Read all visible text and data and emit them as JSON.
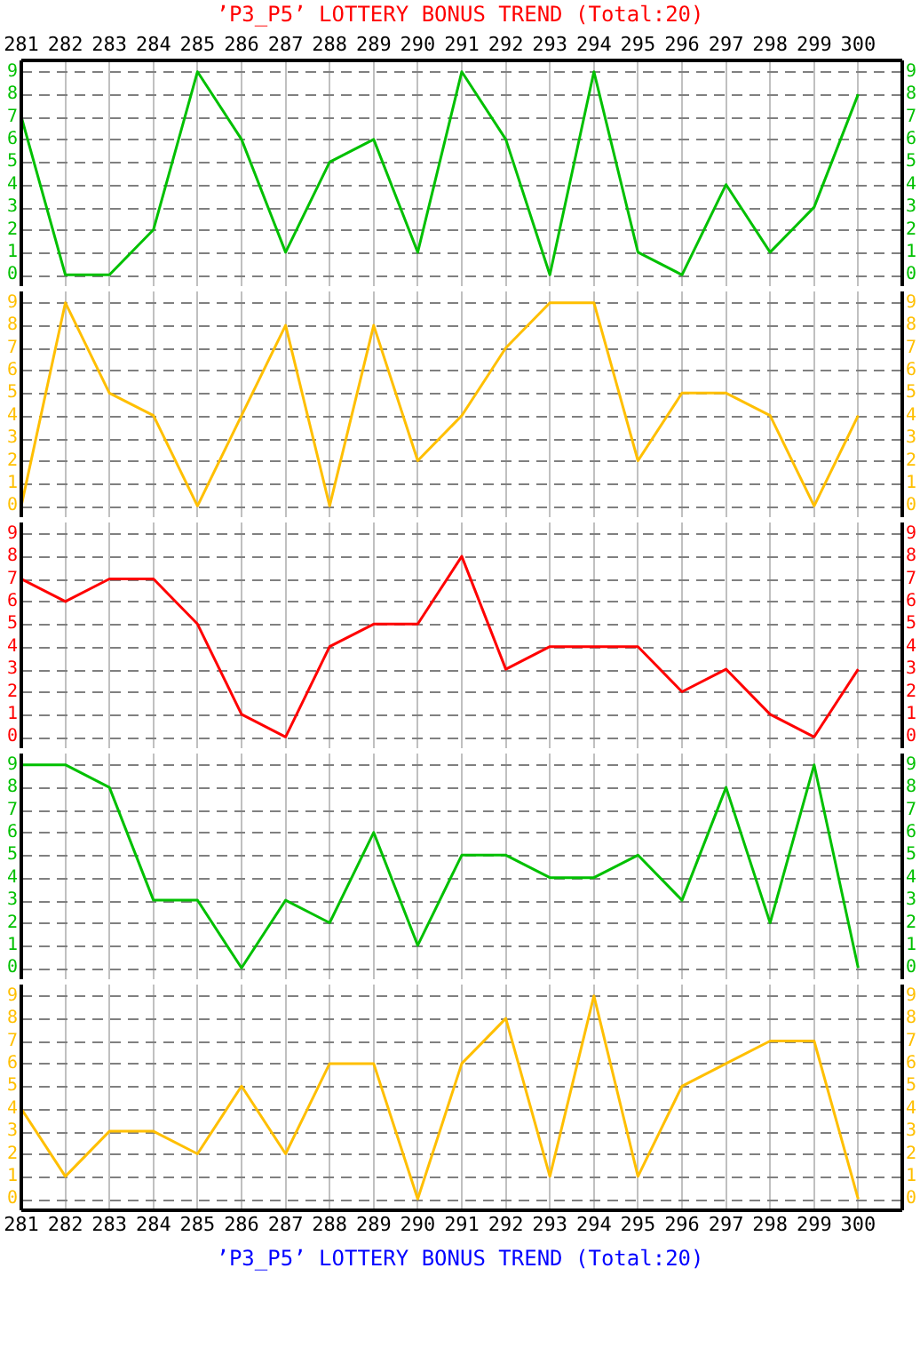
{
  "chart_data": [
    {
      "type": "line",
      "title": "’P3_P5’ LOTTERY BONUS TREND (Total:20)",
      "x": [
        281,
        282,
        283,
        284,
        285,
        286,
        287,
        288,
        289,
        290,
        291,
        292,
        293,
        294,
        295,
        296,
        297,
        298,
        299,
        300
      ],
      "xlim": [
        281,
        301
      ],
      "x2lim": [
        281,
        301
      ],
      "x2ticks": [
        281,
        282,
        283,
        284,
        285,
        286,
        287,
        288,
        289,
        290,
        291,
        292,
        293,
        294,
        295,
        296,
        297,
        298,
        299,
        300
      ],
      "ylim": [
        -0.5,
        9.5
      ],
      "yticks": [
        0,
        1,
        2,
        3,
        4,
        5,
        6,
        7,
        8,
        9
      ],
      "y2lim": [
        -0.5,
        9.5
      ],
      "y2ticks": [
        0,
        1,
        2,
        3,
        4,
        5,
        6,
        7,
        8,
        9
      ],
      "grid": true,
      "tick_labels": "y",
      "line_style": "solid",
      "series": [
        {
          "color": "#00c000",
          "values": [
            7,
            0,
            0,
            2,
            9,
            6,
            1,
            5,
            6,
            1,
            9,
            6,
            0,
            9,
            1,
            0,
            4,
            1,
            3,
            8
          ]
        }
      ]
    },
    {
      "type": "line",
      "x": [
        281,
        282,
        283,
        284,
        285,
        286,
        287,
        288,
        289,
        290,
        291,
        292,
        293,
        294,
        295,
        296,
        297,
        298,
        299,
        300
      ],
      "xlim": [
        281,
        301
      ],
      "xticks": [
        {
          "value": 281,
          "label": null
        },
        {
          "value": 282,
          "label": null
        },
        {
          "value": 283,
          "label": null
        },
        {
          "value": 284,
          "label": null
        },
        {
          "value": 285,
          "label": null
        },
        {
          "value": 286,
          "label": null
        },
        {
          "value": 287,
          "label": null
        },
        {
          "value": 288,
          "label": null
        },
        {
          "value": 289,
          "label": null
        },
        {
          "value": 290,
          "label": null
        },
        {
          "value": 291,
          "label": null
        },
        {
          "value": 292,
          "label": null
        },
        {
          "value": 293,
          "label": null
        },
        {
          "value": 294,
          "label": null
        },
        {
          "value": 295,
          "label": null
        },
        {
          "value": 296,
          "label": null
        },
        {
          "value": 297,
          "label": null
        },
        {
          "value": 298,
          "label": null
        },
        {
          "value": 299,
          "label": null
        },
        {
          "value": 300,
          "label": null
        }
      ],
      "ylim": [
        -0.5,
        9.5
      ],
      "yticks": [
        0,
        1,
        2,
        3,
        4,
        5,
        6,
        7,
        8,
        9
      ],
      "y2lim": [
        -0.5,
        9.5
      ],
      "y2ticks": [
        0,
        1,
        2,
        3,
        4,
        5,
        6,
        7,
        8,
        9
      ],
      "grid": true,
      "tick_labels": "y",
      "line_style": "solid",
      "series": [
        {
          "color": "#ffbf00",
          "values": [
            0,
            9,
            5,
            4,
            0,
            4,
            8,
            0,
            8,
            2,
            4,
            7,
            9,
            9,
            2,
            5,
            5,
            4,
            0,
            4
          ]
        }
      ]
    },
    {
      "type": "line",
      "x": [
        281,
        282,
        283,
        284,
        285,
        286,
        287,
        288,
        289,
        290,
        291,
        292,
        293,
        294,
        295,
        296,
        297,
        298,
        299,
        300
      ],
      "xlim": [
        281,
        301
      ],
      "xticks": [
        {
          "value": 281,
          "label": null
        },
        {
          "value": 282,
          "label": null
        },
        {
          "value": 283,
          "label": null
        },
        {
          "value": 284,
          "label": null
        },
        {
          "value": 285,
          "label": null
        },
        {
          "value": 286,
          "label": null
        },
        {
          "value": 287,
          "label": null
        },
        {
          "value": 288,
          "label": null
        },
        {
          "value": 289,
          "label": null
        },
        {
          "value": 290,
          "label": null
        },
        {
          "value": 291,
          "label": null
        },
        {
          "value": 292,
          "label": null
        },
        {
          "value": 293,
          "label": null
        },
        {
          "value": 294,
          "label": null
        },
        {
          "value": 295,
          "label": null
        },
        {
          "value": 296,
          "label": null
        },
        {
          "value": 297,
          "label": null
        },
        {
          "value": 298,
          "label": null
        },
        {
          "value": 299,
          "label": null
        },
        {
          "value": 300,
          "label": null
        }
      ],
      "ylim": [
        -0.5,
        9.5
      ],
      "yticks": [
        0,
        1,
        2,
        3,
        4,
        5,
        6,
        7,
        8,
        9
      ],
      "y2lim": [
        -0.5,
        9.5
      ],
      "y2ticks": [
        0,
        1,
        2,
        3,
        4,
        5,
        6,
        7,
        8,
        9
      ],
      "grid": true,
      "tick_labels": "y",
      "line_style": "solid",
      "series": [
        {
          "color": "#ff0000",
          "values": [
            7,
            6,
            7,
            7,
            5,
            1,
            0,
            4,
            5,
            5,
            8,
            3,
            4,
            4,
            4,
            2,
            3,
            1,
            0,
            3
          ]
        }
      ]
    },
    {
      "type": "line",
      "x": [
        281,
        282,
        283,
        284,
        285,
        286,
        287,
        288,
        289,
        290,
        291,
        292,
        293,
        294,
        295,
        296,
        297,
        298,
        299,
        300
      ],
      "xlim": [
        281,
        301
      ],
      "xticks": [
        {
          "value": 281,
          "label": null
        },
        {
          "value": 282,
          "label": null
        },
        {
          "value": 283,
          "label": null
        },
        {
          "value": 284,
          "label": null
        },
        {
          "value": 285,
          "label": null
        },
        {
          "value": 286,
          "label": null
        },
        {
          "value": 287,
          "label": null
        },
        {
          "value": 288,
          "label": null
        },
        {
          "value": 289,
          "label": null
        },
        {
          "value": 290,
          "label": null
        },
        {
          "value": 291,
          "label": null
        },
        {
          "value": 292,
          "label": null
        },
        {
          "value": 293,
          "label": null
        },
        {
          "value": 294,
          "label": null
        },
        {
          "value": 295,
          "label": null
        },
        {
          "value": 296,
          "label": null
        },
        {
          "value": 297,
          "label": null
        },
        {
          "value": 298,
          "label": null
        },
        {
          "value": 299,
          "label": null
        },
        {
          "value": 300,
          "label": null
        }
      ],
      "ylim": [
        -0.5,
        9.5
      ],
      "yticks": [
        0,
        1,
        2,
        3,
        4,
        5,
        6,
        7,
        8,
        9
      ],
      "y2lim": [
        -0.5,
        9.5
      ],
      "y2ticks": [
        0,
        1,
        2,
        3,
        4,
        5,
        6,
        7,
        8,
        9
      ],
      "grid": true,
      "tick_labels": "y",
      "line_style": "solid",
      "series": [
        {
          "color": "#00c000",
          "values": [
            9,
            9,
            8,
            3,
            3,
            0,
            3,
            2,
            6,
            1,
            5,
            5,
            4,
            4,
            5,
            3,
            8,
            2,
            9,
            0
          ]
        }
      ]
    },
    {
      "type": "line",
      "annotations": [
        "’P3_P5’ LOTTERY BONUS TREND (Total:20)"
      ],
      "x": [
        281,
        282,
        283,
        284,
        285,
        286,
        287,
        288,
        289,
        290,
        291,
        292,
        293,
        294,
        295,
        296,
        297,
        298,
        299,
        300
      ],
      "xlim": [
        281,
        301
      ],
      "xticks": [
        281,
        282,
        283,
        284,
        285,
        286,
        287,
        288,
        289,
        290,
        291,
        292,
        293,
        294,
        295,
        296,
        297,
        298,
        299,
        300
      ],
      "ylim": [
        -0.5,
        9.5
      ],
      "yticks": [
        0,
        1,
        2,
        3,
        4,
        5,
        6,
        7,
        8,
        9
      ],
      "y2lim": [
        -0.5,
        9.5
      ],
      "y2ticks": [
        0,
        1,
        2,
        3,
        4,
        5,
        6,
        7,
        8,
        9
      ],
      "grid": true,
      "line_style": "solid",
      "series": [
        {
          "color": "#ffbf00",
          "values": [
            4,
            1,
            3,
            3,
            2,
            5,
            2,
            6,
            6,
            0,
            6,
            8,
            1,
            9,
            1,
            5,
            6,
            7,
            7,
            0
          ]
        }
      ]
    }
  ]
}
